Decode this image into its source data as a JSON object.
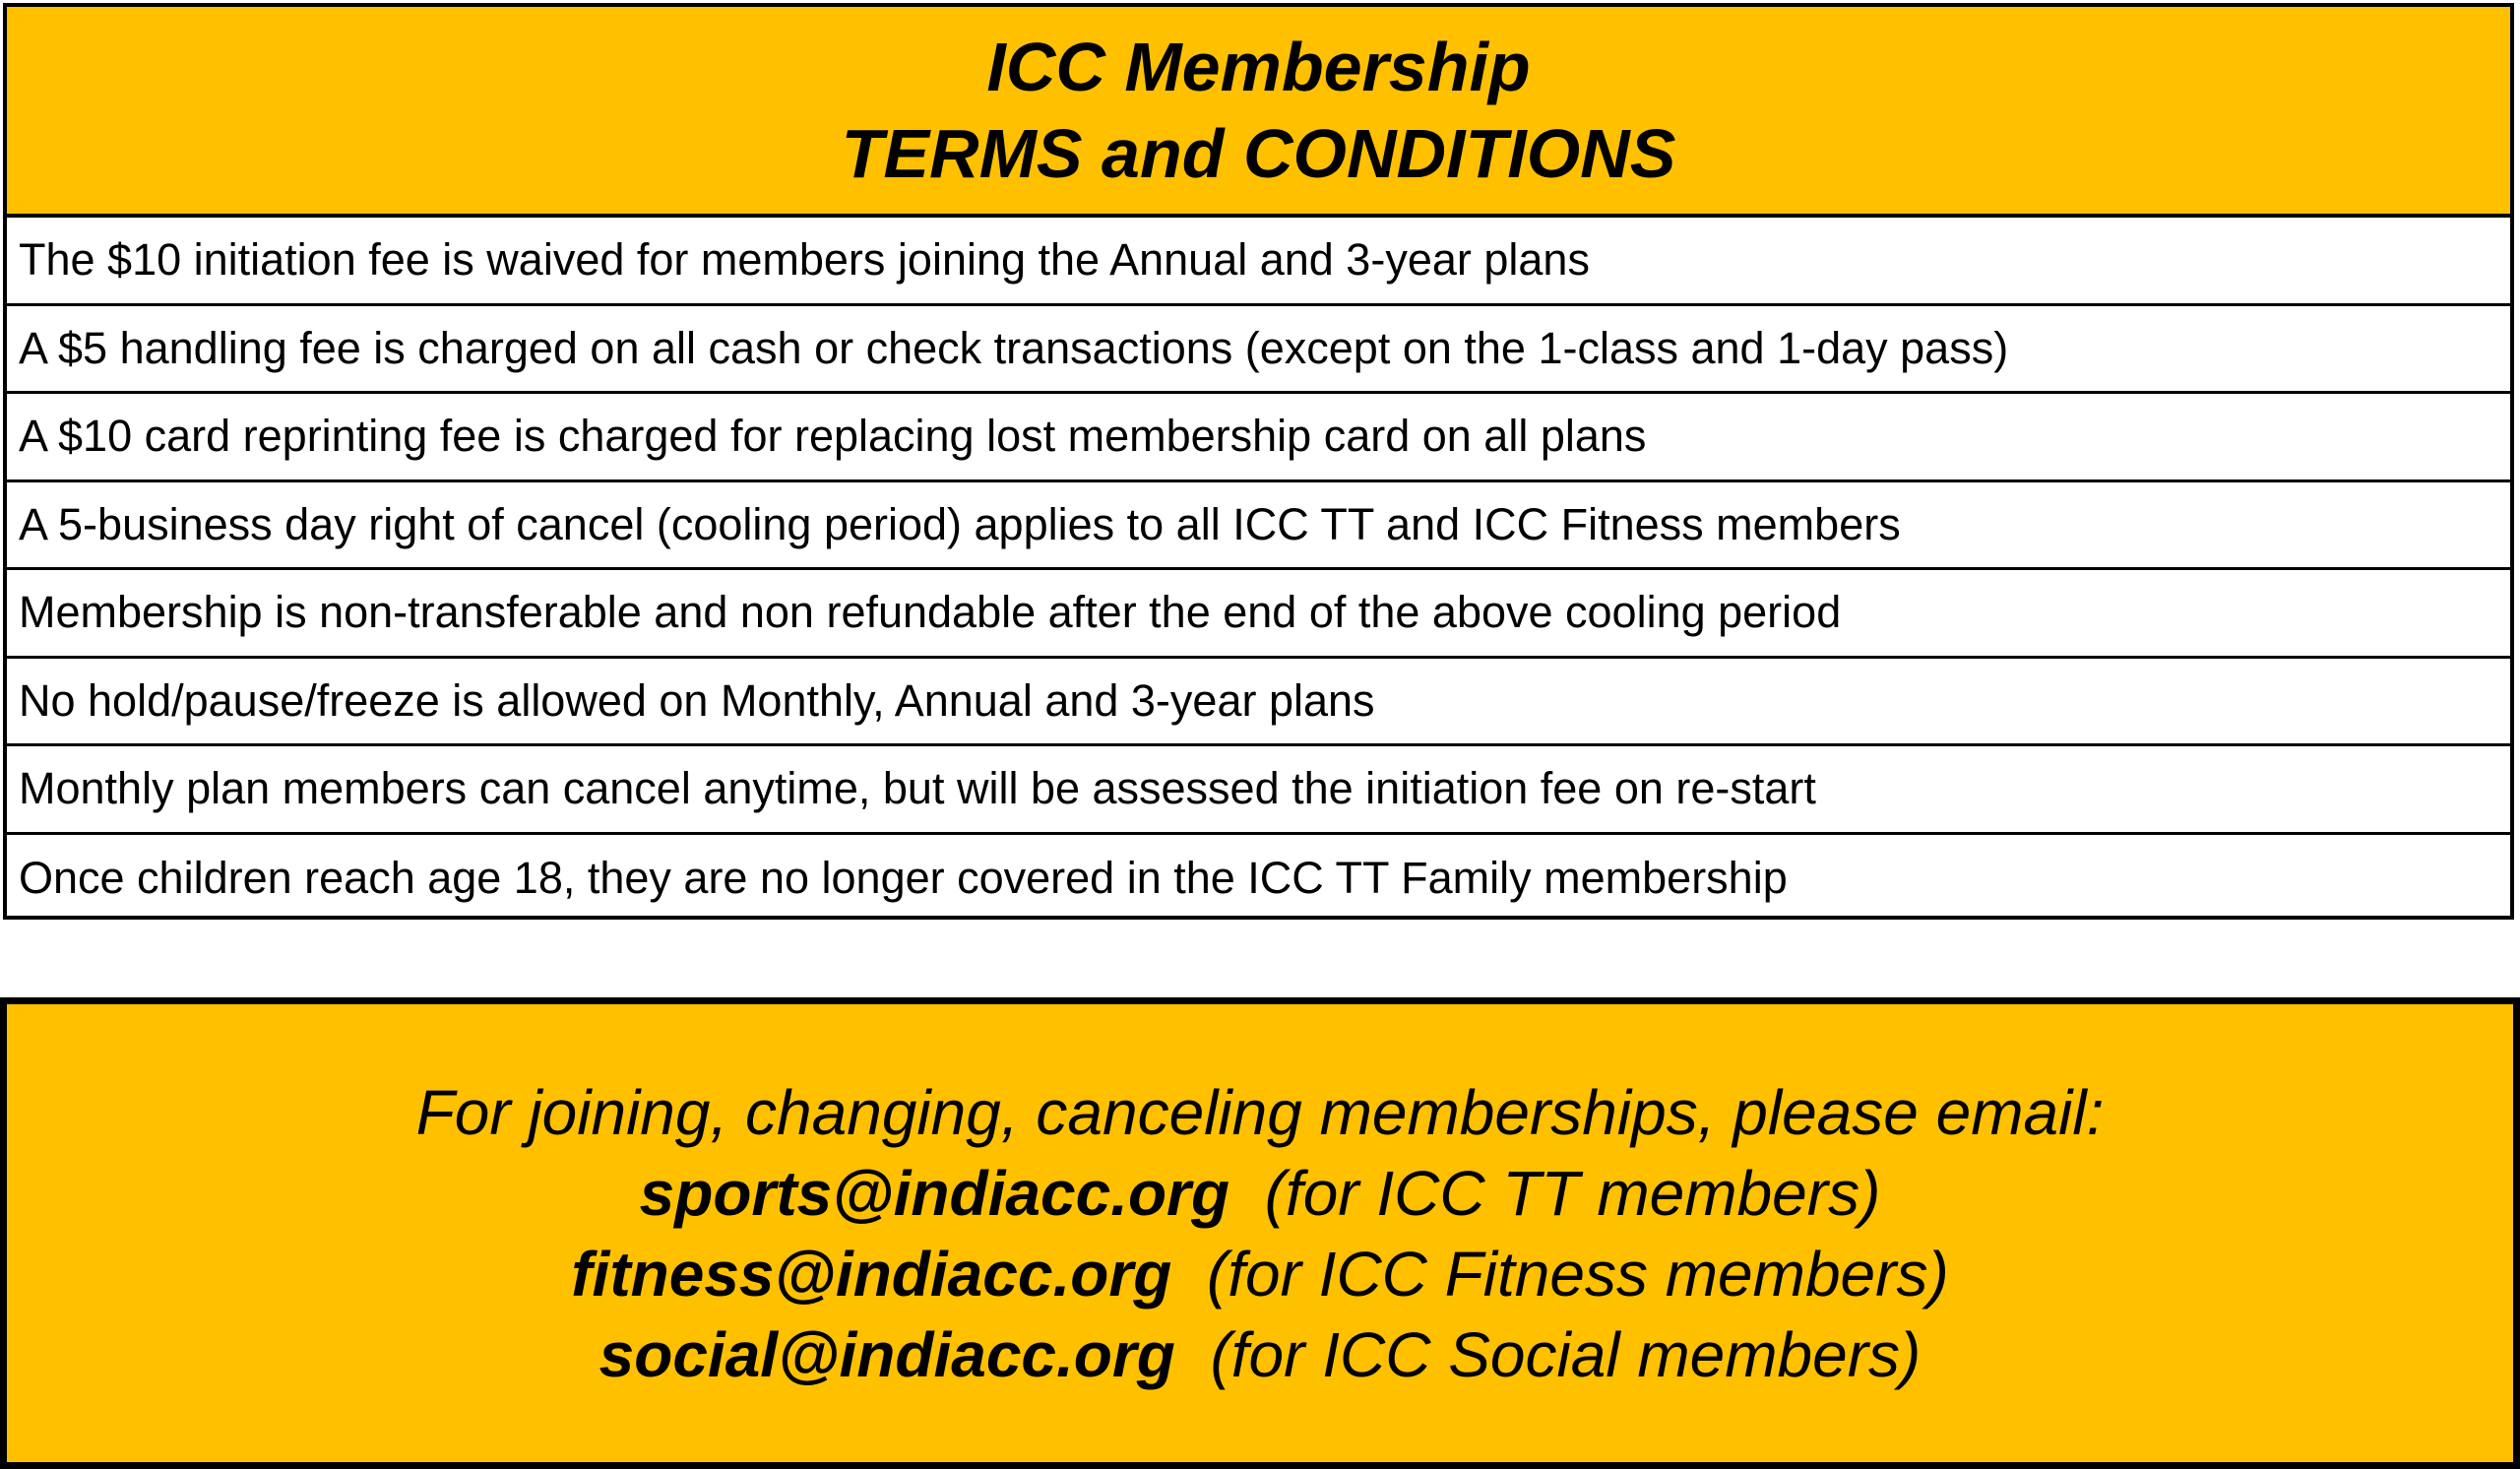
{
  "header": {
    "title_line1": "ICC Membership",
    "title_line2": "TERMS and CONDITIONS"
  },
  "terms": [
    "The $10 initiation fee is waived for members joining the Annual and 3-year plans",
    "A $5 handling fee is charged on all cash or check transactions (except on the 1-class and 1-day pass)",
    "A $10 card reprinting fee is charged for replacing lost membership card on all plans",
    "A 5-business day right of cancel (cooling period) applies to all ICC TT and ICC Fitness members",
    "Membership is non-transferable and non refundable after the end of the above cooling period",
    "No hold/pause/freeze is allowed on Monthly, Annual and 3-year plans",
    "Monthly plan members can cancel anytime, but will be assessed the initiation fee on re-start",
    "Once children reach age 18, they are no longer covered in the ICC TT Family membership"
  ],
  "contact": {
    "intro": "For joining, changing, canceling memberships, please email:",
    "emails": [
      {
        "address": "sports@indiacc.org",
        "note": "(for ICC TT members)"
      },
      {
        "address": "fitness@indiacc.org",
        "note": "(for ICC Fitness members)"
      },
      {
        "address": "social@indiacc.org",
        "note": "(for ICC Social members)"
      }
    ]
  },
  "colors": {
    "accent": "#FFC000",
    "border": "#000000"
  }
}
